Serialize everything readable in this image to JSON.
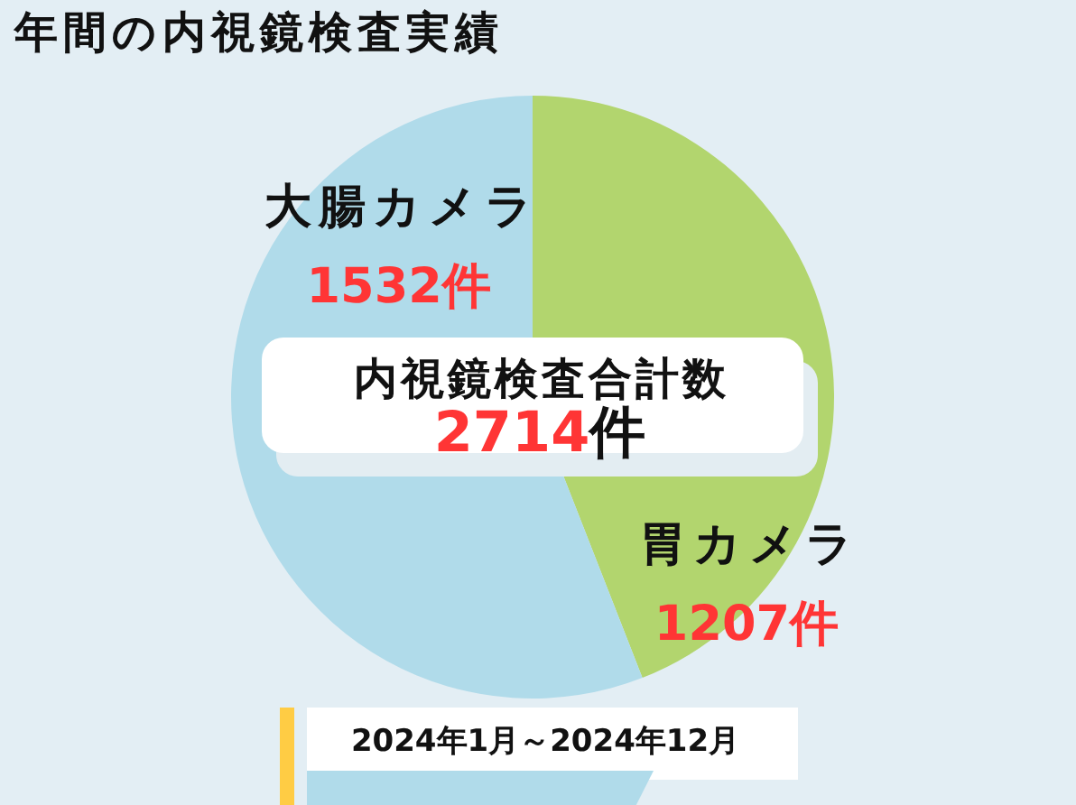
{
  "chart_data": {
    "type": "pie",
    "title": "年間の内視鏡検査実績",
    "categories": [
      "胃カメラ",
      "大腸カメラ"
    ],
    "values": [
      1207,
      1532
    ],
    "colors": [
      "#b2d56e",
      "#b0dbea"
    ],
    "value_labels": [
      "1207件",
      "1532件"
    ],
    "legend": false,
    "annotations": [
      "内視鏡検査合計数",
      "2714件",
      "2024年1月～2024年12月"
    ]
  }
}
